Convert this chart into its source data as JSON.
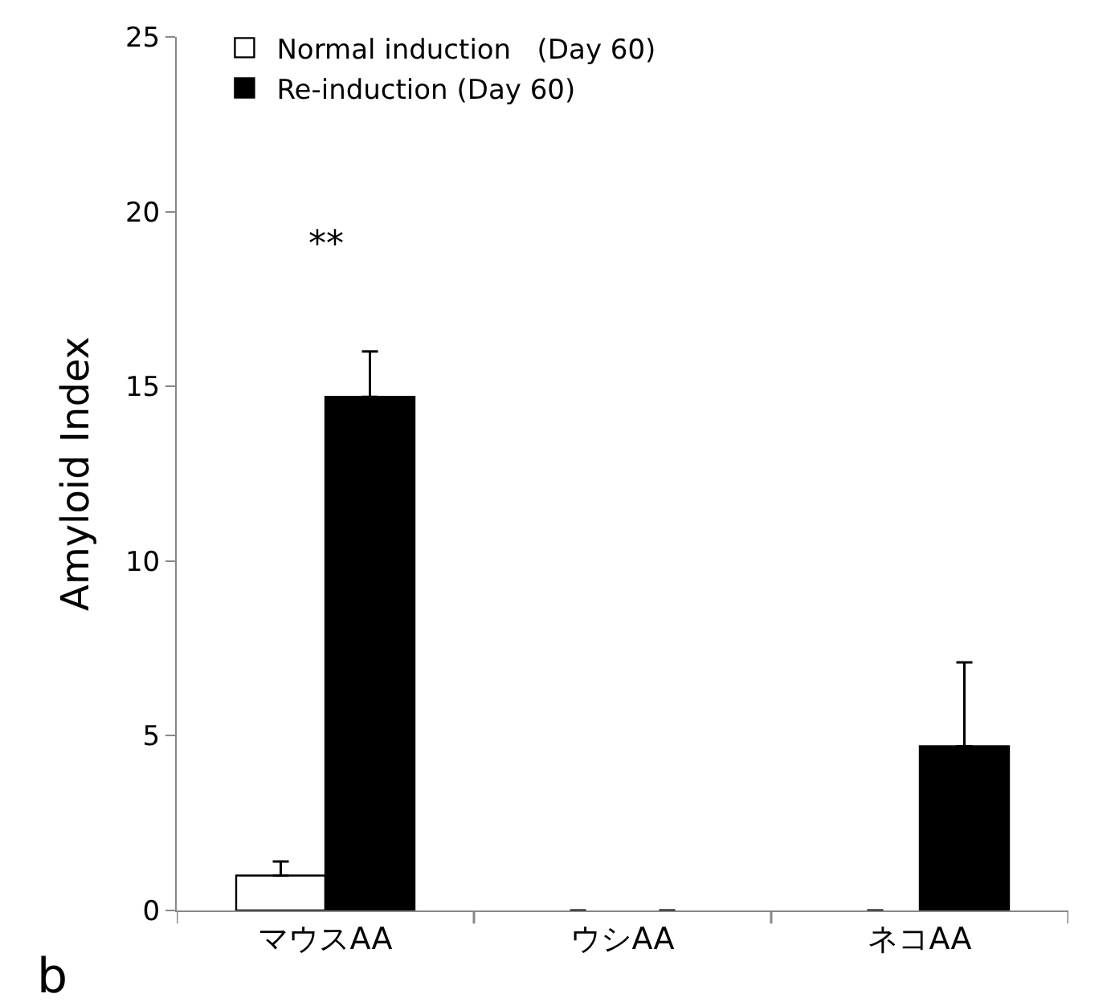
{
  "chart_data": {
    "type": "bar",
    "ylabel": "Amyloid Index",
    "categories": [
      "マウスAA",
      "ウシAA",
      "ネコAA"
    ],
    "series": [
      {
        "name": "Normal induction   (Day 60)",
        "color": "#ffffff",
        "values": [
          1.0,
          0,
          0
        ],
        "errors": [
          [
            1.0,
            1.4
          ],
          null,
          null
        ]
      },
      {
        "name": "Re-induction (Day 60)",
        "color": "#000000",
        "values": [
          14.7,
          0,
          4.7
        ],
        "errors": [
          [
            14.7,
            16.0
          ],
          null,
          [
            4.7,
            7.1
          ]
        ]
      }
    ],
    "ylim": [
      0,
      25
    ],
    "yticks": [
      0,
      5,
      10,
      15,
      20,
      25
    ],
    "legend": "top left",
    "annotations": [
      "**",
      "b"
    ]
  }
}
